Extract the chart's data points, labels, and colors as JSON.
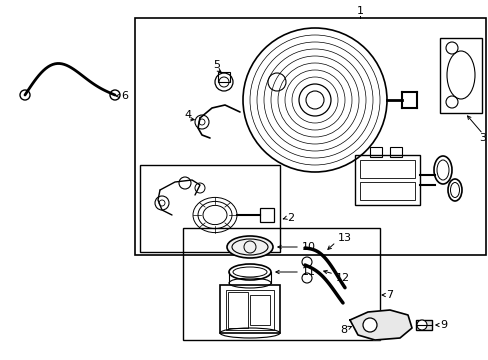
{
  "bg_color": "#ffffff",
  "line_color": "#000000",
  "fig_width": 4.89,
  "fig_height": 3.6,
  "dpi": 100,
  "font_size": 8.0
}
